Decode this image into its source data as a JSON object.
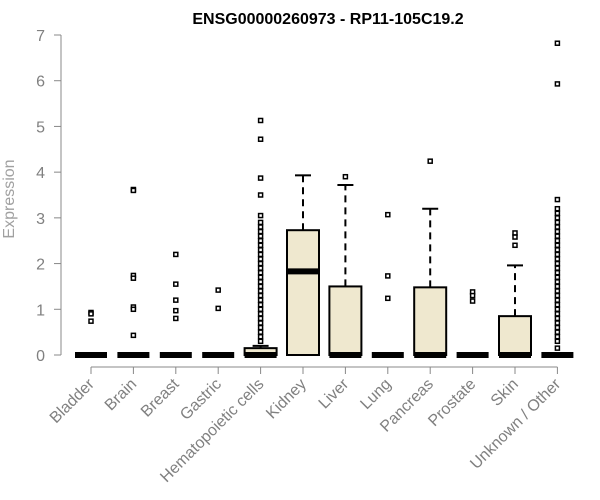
{
  "chart_data": {
    "type": "box",
    "title": "ENSG00000260973 - RP11-105C19.2",
    "xlabel": "",
    "ylabel": "Expression",
    "ylim": [
      0,
      7
    ],
    "yticks": [
      0,
      1,
      2,
      3,
      4,
      5,
      6,
      7
    ],
    "grid": false,
    "box_fill": "#efe8cf",
    "categories": [
      "Bladder",
      "Brain",
      "Breast",
      "Gastric",
      "Hematopoietic cells",
      "Kidney",
      "Liver",
      "Lung",
      "Pancreas",
      "Prostate",
      "Skin",
      "Unknown / Other"
    ],
    "boxes": [
      {
        "category": "Bladder",
        "q1": 0,
        "median": 0,
        "q3": 0,
        "whisker_low": 0,
        "whisker_high": 0,
        "outliers": [
          0.93,
          0.9,
          0.74
        ]
      },
      {
        "category": "Brain",
        "q1": 0,
        "median": 0,
        "q3": 0,
        "whisker_low": 0,
        "whisker_high": 0,
        "outliers": [
          3.62,
          3.6,
          1.74,
          1.68,
          1.05,
          1.0,
          0.43
        ]
      },
      {
        "category": "Breast",
        "q1": 0,
        "median": 0,
        "q3": 0,
        "whisker_low": 0,
        "whisker_high": 0,
        "outliers": [
          2.2,
          1.55,
          1.2,
          0.97,
          0.8
        ]
      },
      {
        "category": "Gastric",
        "q1": 0,
        "median": 0,
        "q3": 0,
        "whisker_low": 0,
        "whisker_high": 0,
        "outliers": [
          1.42,
          1.02
        ]
      },
      {
        "category": "Hematopoietic cells",
        "q1": 0,
        "median": 0,
        "q3": 0.15,
        "whisker_low": 0,
        "whisker_high": 0.2,
        "outliers": [
          5.13,
          4.72,
          3.87,
          3.5,
          3.05,
          2.9,
          2.8,
          2.7,
          2.6,
          2.5,
          2.4,
          2.3,
          2.2,
          2.1,
          2.0,
          1.9,
          1.8,
          1.7,
          1.6,
          1.5,
          1.4,
          1.3,
          1.2,
          1.1,
          1.0,
          0.9,
          0.8,
          0.7,
          0.6,
          0.5,
          0.4,
          0.3
        ]
      },
      {
        "category": "Kidney",
        "q1": 0,
        "median": 1.83,
        "q3": 2.73,
        "whisker_low": 0,
        "whisker_high": 3.93,
        "outliers": []
      },
      {
        "category": "Liver",
        "q1": 0,
        "median": 0,
        "q3": 1.5,
        "whisker_low": 0,
        "whisker_high": 3.72,
        "outliers": [
          3.9
        ]
      },
      {
        "category": "Lung",
        "q1": 0,
        "median": 0,
        "q3": 0,
        "whisker_low": 0,
        "whisker_high": 0,
        "outliers": [
          3.07,
          1.73,
          1.24
        ]
      },
      {
        "category": "Pancreas",
        "q1": 0,
        "median": 0,
        "q3": 1.48,
        "whisker_low": 0,
        "whisker_high": 3.2,
        "outliers": [
          4.24
        ]
      },
      {
        "category": "Prostate",
        "q1": 0,
        "median": 0,
        "q3": 0,
        "whisker_low": 0,
        "whisker_high": 0,
        "outliers": [
          1.38,
          1.3,
          1.18
        ]
      },
      {
        "category": "Skin",
        "q1": 0,
        "median": 0,
        "q3": 0.85,
        "whisker_low": 0,
        "whisker_high": 1.96,
        "outliers": [
          2.67,
          2.58,
          2.4
        ]
      },
      {
        "category": "Unknown / Other",
        "q1": 0,
        "median": 0,
        "q3": 0,
        "whisker_low": 0,
        "whisker_high": 0,
        "outliers": [
          6.82,
          5.93,
          3.4,
          3.2,
          3.1,
          3.0,
          2.9,
          2.8,
          2.7,
          2.6,
          2.5,
          2.4,
          2.3,
          2.2,
          2.1,
          2.0,
          1.9,
          1.8,
          1.7,
          1.6,
          1.5,
          1.4,
          1.3,
          1.2,
          1.1,
          1.0,
          0.9,
          0.8,
          0.7,
          0.6,
          0.5,
          0.4,
          0.3,
          0.15
        ]
      }
    ]
  }
}
